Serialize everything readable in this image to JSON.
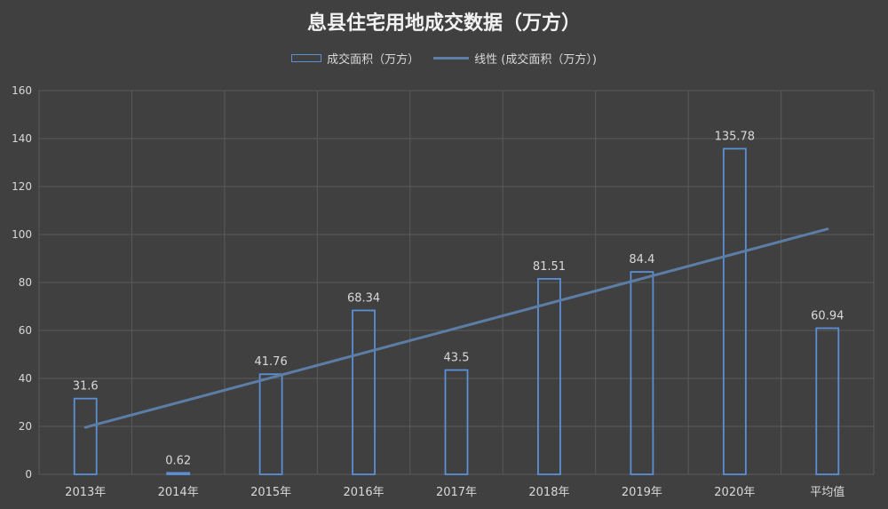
{
  "chart_data": {
    "type": "bar",
    "title": "息县住宅用地成交数据（万方）",
    "categories": [
      "2013年",
      "2014年",
      "2015年",
      "2016年",
      "2017年",
      "2018年",
      "2019年",
      "2020年",
      "平均值"
    ],
    "series": [
      {
        "name": "成交面积（万方）",
        "values": [
          31.6,
          0.62,
          41.76,
          68.34,
          43.5,
          81.51,
          84.4,
          135.78,
          60.94
        ],
        "data_labels": [
          "31.6",
          "0.62",
          "41.76",
          "68.34",
          "43.5",
          "81.51",
          "84.4",
          "135.78",
          "60.94"
        ]
      }
    ],
    "trendline": {
      "name": "线性 (成交面积（万方）)",
      "type": "linear",
      "start_value": 19.6,
      "end_value": 102.3
    },
    "ylim": [
      0,
      160
    ],
    "yticks": [
      0,
      20,
      40,
      60,
      80,
      100,
      120,
      140,
      160
    ],
    "xlabel": "",
    "ylabel": "",
    "grid": true,
    "legend_position": "top"
  },
  "colors": {
    "background": "#404040",
    "grid": "#5a5a5a",
    "bar_outline": "#5b8fd6",
    "trendline": "#5b7da6",
    "text": "#d9d9d9",
    "title": "#f2f2f2"
  }
}
